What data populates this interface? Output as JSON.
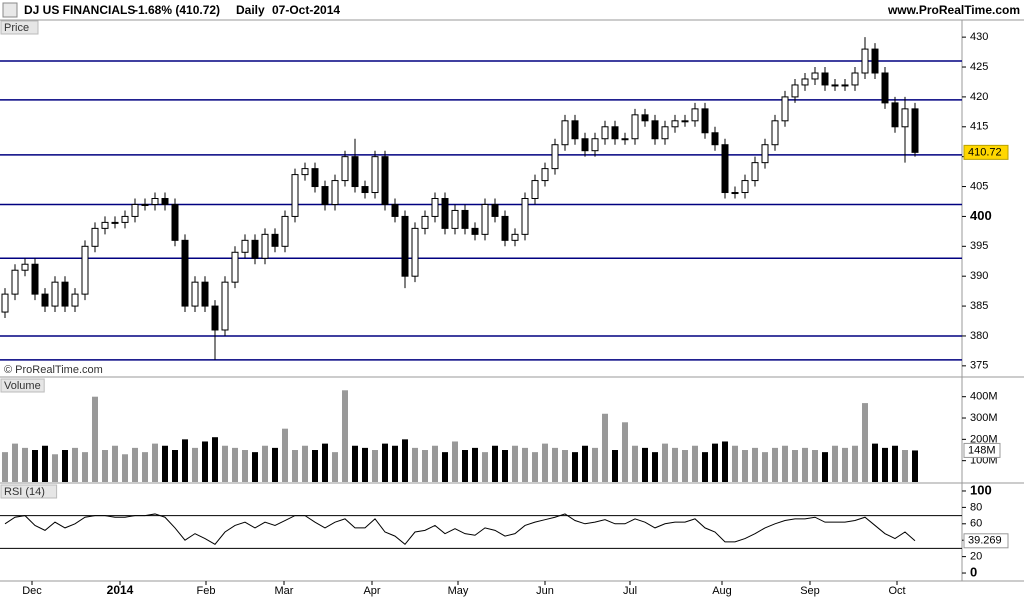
{
  "header": {
    "instrument": "DJ US FINANCIALS",
    "change": "-1.68% (410.72)",
    "timeframe": "Daily",
    "date": "07-Oct-2014",
    "website": "www.ProRealTime.com"
  },
  "chart_data": [
    {
      "type": "candlestick",
      "panel_label": "Price",
      "watermark": "© ProRealTime.com",
      "ylim": [
        373.3,
        432.7
      ],
      "yticks": [
        375,
        380,
        385,
        390,
        395,
        400,
        405,
        410,
        415,
        420,
        425,
        430
      ],
      "levels": [
        426,
        419.5,
        410.3,
        402,
        393,
        380,
        376
      ],
      "level_color": "#000080",
      "up_color": "#ffffff",
      "down_color": "#000000",
      "marker_color": "#ffd700",
      "open": [
        384,
        387,
        391,
        392,
        387,
        385,
        389,
        385,
        387,
        395,
        398,
        399,
        399,
        400,
        402,
        402,
        403,
        402,
        396,
        385,
        389,
        385,
        381,
        389,
        394,
        396,
        393,
        397,
        395,
        400,
        407,
        408,
        405,
        402,
        406,
        410,
        405,
        404,
        410,
        402,
        400,
        390,
        398,
        400,
        403,
        398,
        401,
        398,
        397,
        402,
        400,
        396,
        397,
        403,
        406,
        408,
        412,
        416,
        413,
        411,
        413,
        415,
        413,
        413,
        417,
        416,
        413,
        415,
        416,
        416,
        418,
        414,
        412,
        404,
        404,
        406,
        409,
        412,
        416,
        420,
        422,
        423,
        424,
        422,
        422,
        422,
        424,
        428,
        424,
        419,
        415,
        418
      ],
      "high": [
        388,
        392,
        393,
        393,
        388,
        390,
        390,
        388,
        396,
        399,
        400,
        400,
        401,
        403,
        403,
        404,
        404,
        403,
        397,
        390,
        390,
        386,
        390,
        395,
        397,
        397,
        398,
        398,
        401,
        408,
        409,
        409,
        406,
        407,
        411,
        413,
        406,
        411,
        411,
        403,
        401,
        399,
        401,
        404,
        404,
        402,
        402,
        399,
        403,
        403,
        401,
        398,
        404,
        407,
        409,
        413,
        417,
        417,
        414,
        414,
        416,
        416,
        414,
        418,
        418,
        417,
        416,
        417,
        417,
        419,
        419,
        415,
        413,
        405,
        407,
        410,
        413,
        417,
        421,
        423,
        424,
        425,
        425,
        423,
        423,
        425,
        430,
        429,
        425,
        420,
        420,
        419
      ],
      "low": [
        383,
        386,
        390,
        386,
        384,
        384,
        384,
        384,
        386,
        394,
        397,
        398,
        398,
        399,
        401,
        401,
        401,
        395,
        384,
        384,
        384,
        376,
        380,
        388,
        393,
        392,
        392,
        394,
        394,
        399,
        406,
        404,
        401,
        401,
        405,
        404,
        403,
        403,
        401,
        399,
        388,
        389,
        397,
        399,
        397,
        397,
        397,
        396,
        396,
        399,
        395,
        395,
        396,
        402,
        405,
        407,
        411,
        412,
        410,
        410,
        412,
        412,
        412,
        412,
        415,
        412,
        412,
        414,
        415,
        415,
        413,
        411,
        403,
        403,
        403,
        405,
        408,
        411,
        415,
        419,
        421,
        422,
        421,
        421,
        421,
        421,
        423,
        423,
        418,
        414,
        409,
        410
      ],
      "close": [
        387,
        391,
        392,
        387,
        385,
        389,
        385,
        387,
        395,
        398,
        399,
        399,
        400,
        402,
        402,
        403,
        402,
        396,
        385,
        389,
        385,
        381,
        389,
        394,
        396,
        393,
        397,
        395,
        400,
        407,
        408,
        405,
        402,
        406,
        410,
        405,
        404,
        410,
        402,
        400,
        390,
        398,
        400,
        403,
        398,
        401,
        398,
        397,
        402,
        400,
        396,
        397,
        403,
        406,
        408,
        412,
        416,
        413,
        411,
        413,
        415,
        413,
        413,
        417,
        416,
        413,
        415,
        416,
        416,
        418,
        414,
        412,
        404,
        404,
        406,
        409,
        412,
        416,
        420,
        422,
        423,
        424,
        422,
        422,
        422,
        424,
        428,
        424,
        419,
        415,
        418,
        410.72
      ]
    },
    {
      "type": "bar",
      "panel_label": "Volume",
      "ylim": [
        0,
        422
      ],
      "yticks": [
        {
          "value": 100,
          "label": "100M"
        },
        {
          "value": 200,
          "label": "200M"
        },
        {
          "value": 300,
          "label": "300M"
        },
        {
          "value": 400,
          "label": "400M"
        }
      ],
      "up_color": "#999999",
      "down_color": "#000000",
      "values": [
        140,
        180,
        160,
        150,
        170,
        130,
        150,
        160,
        140,
        400,
        150,
        170,
        130,
        160,
        140,
        180,
        170,
        150,
        200,
        160,
        190,
        210,
        170,
        160,
        150,
        140,
        170,
        160,
        250,
        150,
        170,
        150,
        180,
        140,
        430,
        170,
        160,
        150,
        180,
        170,
        200,
        160,
        150,
        170,
        140,
        190,
        150,
        160,
        140,
        170,
        150,
        170,
        160,
        140,
        180,
        160,
        150,
        140,
        170,
        160,
        320,
        150,
        280,
        170,
        160,
        140,
        180,
        160,
        150,
        170,
        140,
        180,
        190,
        170,
        150,
        160,
        140,
        160,
        170,
        150,
        160,
        150,
        140,
        170,
        160,
        170,
        370,
        180,
        160,
        170,
        150,
        148
      ],
      "value_labels": {
        "91": "148M"
      }
    },
    {
      "type": "line",
      "panel_label": "RSI (14)",
      "color": "#000000",
      "band_color": "#000000",
      "ylim": [
        -8.5,
        108.5
      ],
      "yticks": [
        0,
        20,
        40,
        60,
        80,
        100
      ],
      "bands": [
        30,
        70
      ],
      "xlim": [
        -0.5,
        95.7
      ],
      "xticks": [
        {
          "value": 2.7,
          "label": "Dec"
        },
        {
          "value": 11.5,
          "label": "2014"
        },
        {
          "value": 20.1,
          "label": "Feb"
        },
        {
          "value": 27.9,
          "label": "Mar"
        },
        {
          "value": 36.7,
          "label": "Apr"
        },
        {
          "value": 45.3,
          "label": "May"
        },
        {
          "value": 54,
          "label": "Jun"
        },
        {
          "value": 62.5,
          "label": "Jul"
        },
        {
          "value": 71.7,
          "label": "Aug"
        },
        {
          "value": 80.5,
          "label": "Sep"
        },
        {
          "value": 89.2,
          "label": "Oct"
        }
      ],
      "values": [
        60,
        68,
        70,
        58,
        52,
        62,
        55,
        60,
        68,
        70,
        70,
        68,
        68,
        70,
        70,
        72,
        68,
        55,
        40,
        48,
        42,
        35,
        50,
        58,
        62,
        55,
        62,
        58,
        64,
        70,
        70,
        62,
        55,
        62,
        66,
        55,
        55,
        66,
        50,
        45,
        35,
        50,
        52,
        58,
        48,
        54,
        48,
        46,
        55,
        52,
        45,
        48,
        58,
        62,
        65,
        68,
        72,
        64,
        60,
        62,
        65,
        60,
        60,
        66,
        62,
        55,
        60,
        62,
        62,
        66,
        55,
        50,
        38,
        38,
        42,
        48,
        55,
        60,
        64,
        66,
        66,
        68,
        62,
        62,
        62,
        64,
        68,
        58,
        48,
        42,
        50,
        39.269
      ]
    }
  ]
}
